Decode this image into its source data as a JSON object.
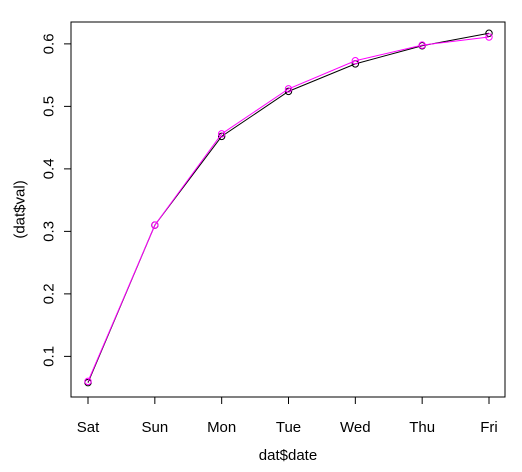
{
  "chart_data": {
    "type": "line",
    "xlabel": "dat$date",
    "ylabel": "(dat$val)",
    "categories": [
      "Sat",
      "Sun",
      "Mon",
      "Tue",
      "Wed",
      "Thu",
      "Fri"
    ],
    "yticks": [
      0.1,
      0.2,
      0.3,
      0.4,
      0.5,
      0.6
    ],
    "ylim": [
      0.035,
      0.635
    ],
    "series": [
      {
        "color": "#000000",
        "values": [
          0.058,
          0.31,
          0.452,
          0.524,
          0.568,
          0.597,
          0.617
        ]
      },
      {
        "color": "#ff00ff",
        "values": [
          0.06,
          0.31,
          0.456,
          0.528,
          0.573,
          0.598,
          0.611
        ]
      }
    ],
    "legend": "none",
    "grid": false,
    "markers": "open-circle"
  }
}
